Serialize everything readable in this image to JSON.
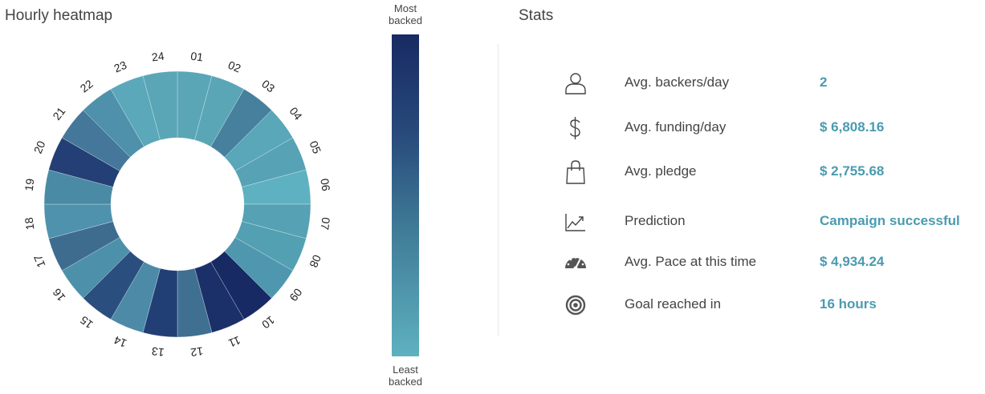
{
  "heatmap": {
    "title": "Hourly heatmap",
    "hours": [
      {
        "label": "01",
        "color": "#5aa6b7"
      },
      {
        "label": "02",
        "color": "#5aa6b7"
      },
      {
        "label": "03",
        "color": "#46809c"
      },
      {
        "label": "04",
        "color": "#59a7b8"
      },
      {
        "label": "05",
        "color": "#57a2b5"
      },
      {
        "label": "06",
        "color": "#5eb1c0"
      },
      {
        "label": "07",
        "color": "#56a1b4"
      },
      {
        "label": "08",
        "color": "#52a0b2"
      },
      {
        "label": "09",
        "color": "#4f97ae"
      },
      {
        "label": "10",
        "color": "#182a63"
      },
      {
        "label": "11",
        "color": "#1b3069"
      },
      {
        "label": "12",
        "color": "#3f6f91"
      },
      {
        "label": "13",
        "color": "#223f75"
      },
      {
        "label": "14",
        "color": "#4c8aa7"
      },
      {
        "label": "15",
        "color": "#2a4f7e"
      },
      {
        "label": "16",
        "color": "#4c90aa"
      },
      {
        "label": "17",
        "color": "#3d6c8f"
      },
      {
        "label": "18",
        "color": "#4e92ad"
      },
      {
        "label": "19",
        "color": "#4a8aa5"
      },
      {
        "label": "20",
        "color": "#233f76"
      },
      {
        "label": "21",
        "color": "#45779a"
      },
      {
        "label": "22",
        "color": "#4f91aa"
      },
      {
        "label": "23",
        "color": "#5aa8b9"
      },
      {
        "label": "24",
        "color": "#5aa6b7"
      }
    ]
  },
  "legend": {
    "top_line1": "Most",
    "top_line2": "backed",
    "bottom_line1": "Least",
    "bottom_line2": "backed",
    "color_high": "#182a63",
    "color_low": "#5eb1c0"
  },
  "stats": {
    "title": "Stats",
    "rows": [
      {
        "icon": "user-icon",
        "label": "Avg. backers/day",
        "value": "2"
      },
      {
        "icon": "dollar-icon",
        "label": "Avg. funding/day",
        "value": "$ 6,808.16"
      },
      {
        "icon": "shopping-bag-icon",
        "label": "Avg. pledge",
        "value": "$ 2,755.68"
      },
      {
        "icon": "trend-chart-icon",
        "label": "Prediction",
        "value": "Campaign successful"
      },
      {
        "icon": "speedometer-icon",
        "label": "Avg. Pace at this time",
        "value": "$ 4,934.24"
      },
      {
        "icon": "target-icon",
        "label": "Goal reached in",
        "value": "16 hours"
      }
    ]
  },
  "colors": {
    "accent": "#4a9bb0"
  }
}
